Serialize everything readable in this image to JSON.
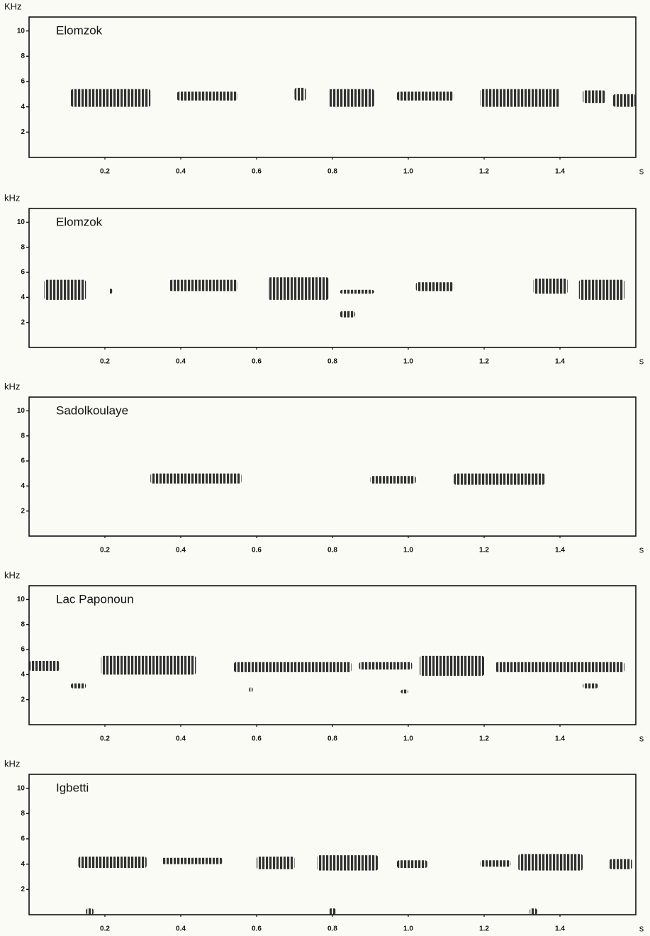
{
  "chart_data": [
    {
      "type": "spectrogram",
      "title": "Elomzok",
      "ylabel": "KHz",
      "xlabel": "s",
      "xlim": [
        0,
        1.6
      ],
      "ylim": [
        0,
        11.1
      ],
      "xticks": [
        0.2,
        0.4,
        0.6,
        0.8,
        {
          "value": 1,
          "label": "1.0"
        },
        1.2,
        1.4
      ],
      "yticks": [
        2,
        4,
        6,
        8,
        10
      ],
      "color": "#1c1c1c",
      "events": [
        {
          "x": [
            0.11,
            0.32
          ],
          "y": [
            4,
            5.4
          ]
        },
        {
          "x": [
            0.39,
            0.55
          ],
          "y": [
            4.5,
            5.2
          ]
        },
        {
          "x": [
            0.7,
            0.73
          ],
          "y": [
            4.5,
            5.5
          ]
        },
        {
          "x": [
            0.79,
            0.91
          ],
          "y": [
            4,
            5.4
          ]
        },
        {
          "x": [
            0.97,
            1.12
          ],
          "y": [
            4.5,
            5.2
          ]
        },
        {
          "x": [
            1.19,
            1.4
          ],
          "y": [
            4,
            5.4
          ]
        },
        {
          "x": [
            1.46,
            1.52
          ],
          "y": [
            4.3,
            5.3
          ]
        },
        {
          "x": [
            1.54,
            1.6
          ],
          "y": [
            4,
            5
          ]
        }
      ]
    },
    {
      "type": "spectrogram",
      "title": "Elomzok",
      "ylabel": "kHz",
      "xlabel": "s",
      "xlim": [
        0,
        1.6
      ],
      "ylim": [
        0,
        11.1
      ],
      "xticks": [
        0.2,
        0.4,
        0.6,
        0.8,
        {
          "value": 1,
          "label": "1.0"
        },
        1.2,
        1.4
      ],
      "yticks": [
        2,
        4,
        6,
        8,
        10
      ],
      "color": "#1c1c1c",
      "events": [
        {
          "x": [
            0.04,
            0.15
          ],
          "y": [
            3.8,
            5.4
          ]
        },
        {
          "x": [
            0.21,
            0.22
          ],
          "y": [
            4.3,
            4.7
          ]
        },
        {
          "x": [
            0.37,
            0.55
          ],
          "y": [
            4.5,
            5.4
          ]
        },
        {
          "x": [
            0.63,
            0.79
          ],
          "y": [
            3.8,
            5.6
          ]
        },
        {
          "x": [
            0.82,
            0.91
          ],
          "y": [
            4.3,
            4.6
          ]
        },
        {
          "x": [
            0.82,
            0.86
          ],
          "y": [
            2.4,
            2.9
          ]
        },
        {
          "x": [
            1.02,
            1.12
          ],
          "y": [
            4.5,
            5.2
          ]
        },
        {
          "x": [
            1.33,
            1.42
          ],
          "y": [
            4.3,
            5.5
          ]
        },
        {
          "x": [
            1.45,
            1.57
          ],
          "y": [
            3.8,
            5.4
          ]
        }
      ]
    },
    {
      "type": "spectrogram",
      "title": "Sadolkoulaye",
      "ylabel": "kHz",
      "xlabel": "s",
      "xlim": [
        0,
        1.6
      ],
      "ylim": [
        0,
        11.1
      ],
      "xticks": [
        0.2,
        0.4,
        0.6,
        0.8,
        {
          "value": 1,
          "label": "1.0"
        },
        1.2,
        1.4
      ],
      "yticks": [
        2,
        4,
        6,
        8,
        10
      ],
      "color": "#1c1c1c",
      "events": [
        {
          "x": [
            0.32,
            0.56
          ],
          "y": [
            4.2,
            5
          ]
        },
        {
          "x": [
            0.9,
            1.02
          ],
          "y": [
            4.2,
            4.8
          ]
        },
        {
          "x": [
            1.12,
            1.36
          ],
          "y": [
            4.1,
            5
          ]
        }
      ]
    },
    {
      "type": "spectrogram",
      "title": "Lac Paponoun",
      "ylabel": "kHz",
      "xlabel": "s",
      "xlim": [
        0,
        1.6
      ],
      "ylim": [
        0,
        11.1
      ],
      "xticks": [
        0.2,
        0.4,
        0.6,
        0.8,
        {
          "value": 1,
          "label": "1.0"
        },
        1.2,
        1.4
      ],
      "yticks": [
        2,
        4,
        6,
        8,
        10
      ],
      "color": "#1c1c1c",
      "events": [
        {
          "x": [
            0,
            0.08
          ],
          "y": [
            4.3,
            5.1
          ]
        },
        {
          "x": [
            0.11,
            0.15
          ],
          "y": [
            2.9,
            3.3
          ]
        },
        {
          "x": [
            0.19,
            0.44
          ],
          "y": [
            4,
            5.5
          ]
        },
        {
          "x": [
            0.54,
            0.85
          ],
          "y": [
            4.2,
            5
          ]
        },
        {
          "x": [
            0.87,
            1.01
          ],
          "y": [
            4.4,
            5
          ]
        },
        {
          "x": [
            1.03,
            1.2
          ],
          "y": [
            3.9,
            5.5
          ]
        },
        {
          "x": [
            1.23,
            1.57
          ],
          "y": [
            4.2,
            5
          ]
        },
        {
          "x": [
            1.46,
            1.5
          ],
          "y": [
            2.9,
            3.3
          ]
        },
        {
          "x": [
            0.58,
            0.59
          ],
          "y": [
            2.6,
            3
          ]
        },
        {
          "x": [
            0.98,
            1
          ],
          "y": [
            2.5,
            2.8
          ]
        }
      ]
    },
    {
      "type": "spectrogram",
      "title": "Igbetti",
      "ylabel": "kHz",
      "xlabel": "s",
      "xlim": [
        0,
        1.6
      ],
      "ylim": [
        0,
        11.1
      ],
      "xticks": [
        0.2,
        0.4,
        0.6,
        0.8,
        {
          "value": 1,
          "label": "1.0"
        },
        1.2,
        1.4
      ],
      "yticks": [
        2,
        4,
        6,
        8,
        10
      ],
      "color": "#1c1c1c",
      "events": [
        {
          "x": [
            0.13,
            0.31
          ],
          "y": [
            3.7,
            4.6
          ]
        },
        {
          "x": [
            0.35,
            0.51
          ],
          "y": [
            4,
            4.5
          ]
        },
        {
          "x": [
            0.6,
            0.7
          ],
          "y": [
            3.6,
            4.6
          ]
        },
        {
          "x": [
            0.76,
            0.92
          ],
          "y": [
            3.5,
            4.7
          ]
        },
        {
          "x": [
            0.97,
            1.05
          ],
          "y": [
            3.7,
            4.3
          ]
        },
        {
          "x": [
            1.19,
            1.27
          ],
          "y": [
            3.8,
            4.3
          ]
        },
        {
          "x": [
            1.29,
            1.46
          ],
          "y": [
            3.5,
            4.8
          ]
        },
        {
          "x": [
            1.53,
            1.59
          ],
          "y": [
            3.6,
            4.4
          ]
        },
        {
          "x": [
            0.15,
            0.17
          ],
          "y": [
            0,
            0.5
          ]
        },
        {
          "x": [
            0.79,
            0.81
          ],
          "y": [
            0,
            0.5
          ]
        },
        {
          "x": [
            1.32,
            1.34
          ],
          "y": [
            0,
            0.5
          ]
        }
      ]
    }
  ]
}
